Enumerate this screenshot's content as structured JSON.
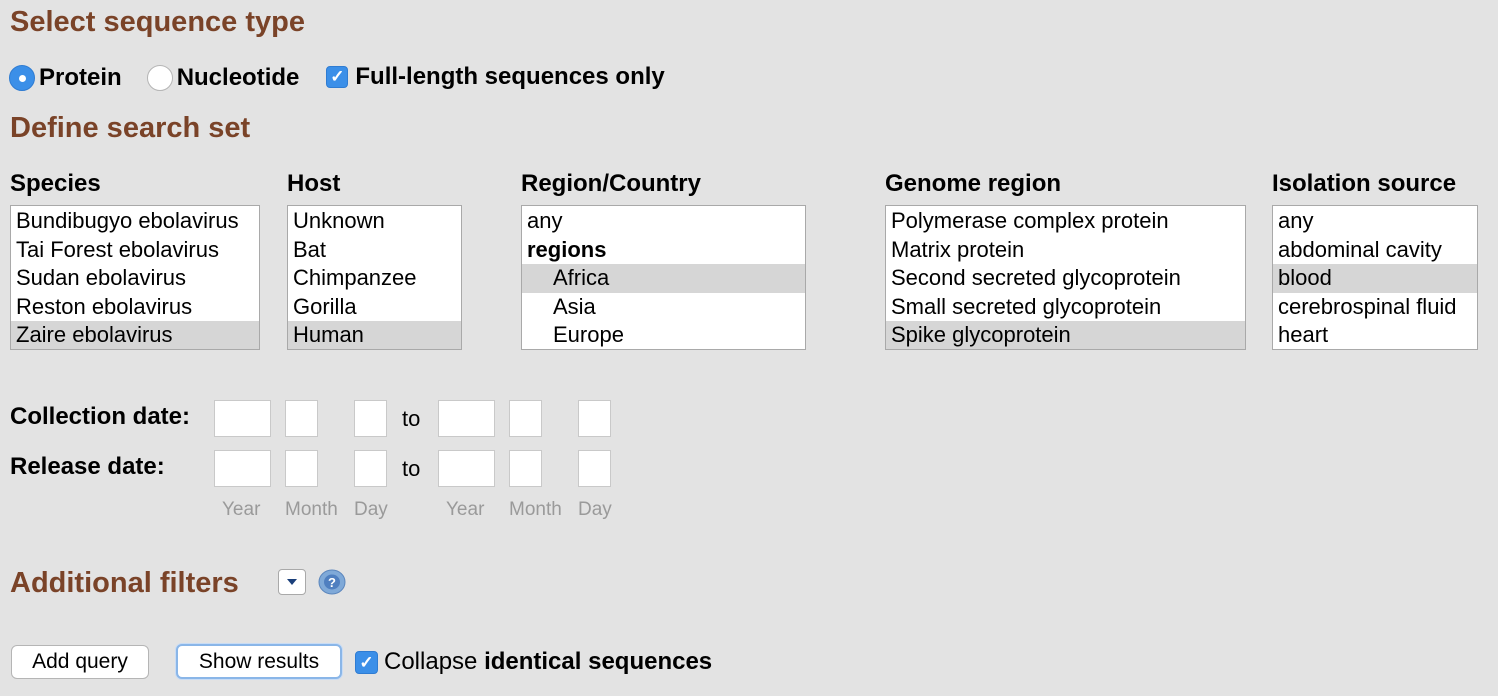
{
  "headings": {
    "sequence_type": "Select sequence type",
    "search_set": "Define search set",
    "additional_filters": "Additional filters"
  },
  "sequence_type": {
    "protein": "Protein",
    "nucleotide": "Nucleotide",
    "selected": "Protein",
    "full_length": "Full-length sequences only",
    "full_length_checked": true
  },
  "columns": {
    "species": {
      "label": "Species",
      "options": [
        "Bundibugyo ebolavirus",
        "Tai Forest ebolavirus",
        "Sudan ebolavirus",
        "Reston ebolavirus",
        "Zaire ebolavirus"
      ],
      "selected": "Zaire ebolavirus"
    },
    "host": {
      "label": "Host",
      "options": [
        "Unknown",
        "Bat",
        "Chimpanzee",
        "Gorilla",
        "Human"
      ],
      "selected": "Human"
    },
    "region": {
      "label": "Region/Country",
      "options": [
        "any",
        "regions",
        "Africa",
        "Asia",
        "Europe"
      ],
      "selected": "Africa"
    },
    "genome": {
      "label": "Genome region",
      "options": [
        "Polymerase complex protein",
        "Matrix protein",
        "Second secreted glycoprotein",
        "Small secreted glycoprotein",
        "Spike glycoprotein"
      ],
      "selected": "Spike glycoprotein"
    },
    "isolation": {
      "label": "Isolation source",
      "options": [
        "any",
        "abdominal cavity",
        "blood",
        "cerebrospinal fluid",
        "heart"
      ],
      "selected": "blood"
    }
  },
  "dates": {
    "collection_label": "Collection date:",
    "release_label": "Release date:",
    "to": "to",
    "hints": [
      "Year",
      "Month",
      "Day",
      "Year",
      "Month",
      "Day"
    ]
  },
  "icons": {
    "dropdown": "chevron-down-icon",
    "help": "help-icon"
  },
  "actions": {
    "add_query": "Add query",
    "show_results": "Show results",
    "collapse_prefix": "Collapse ",
    "collapse_bold": "identical sequences",
    "collapse_checked": true
  }
}
